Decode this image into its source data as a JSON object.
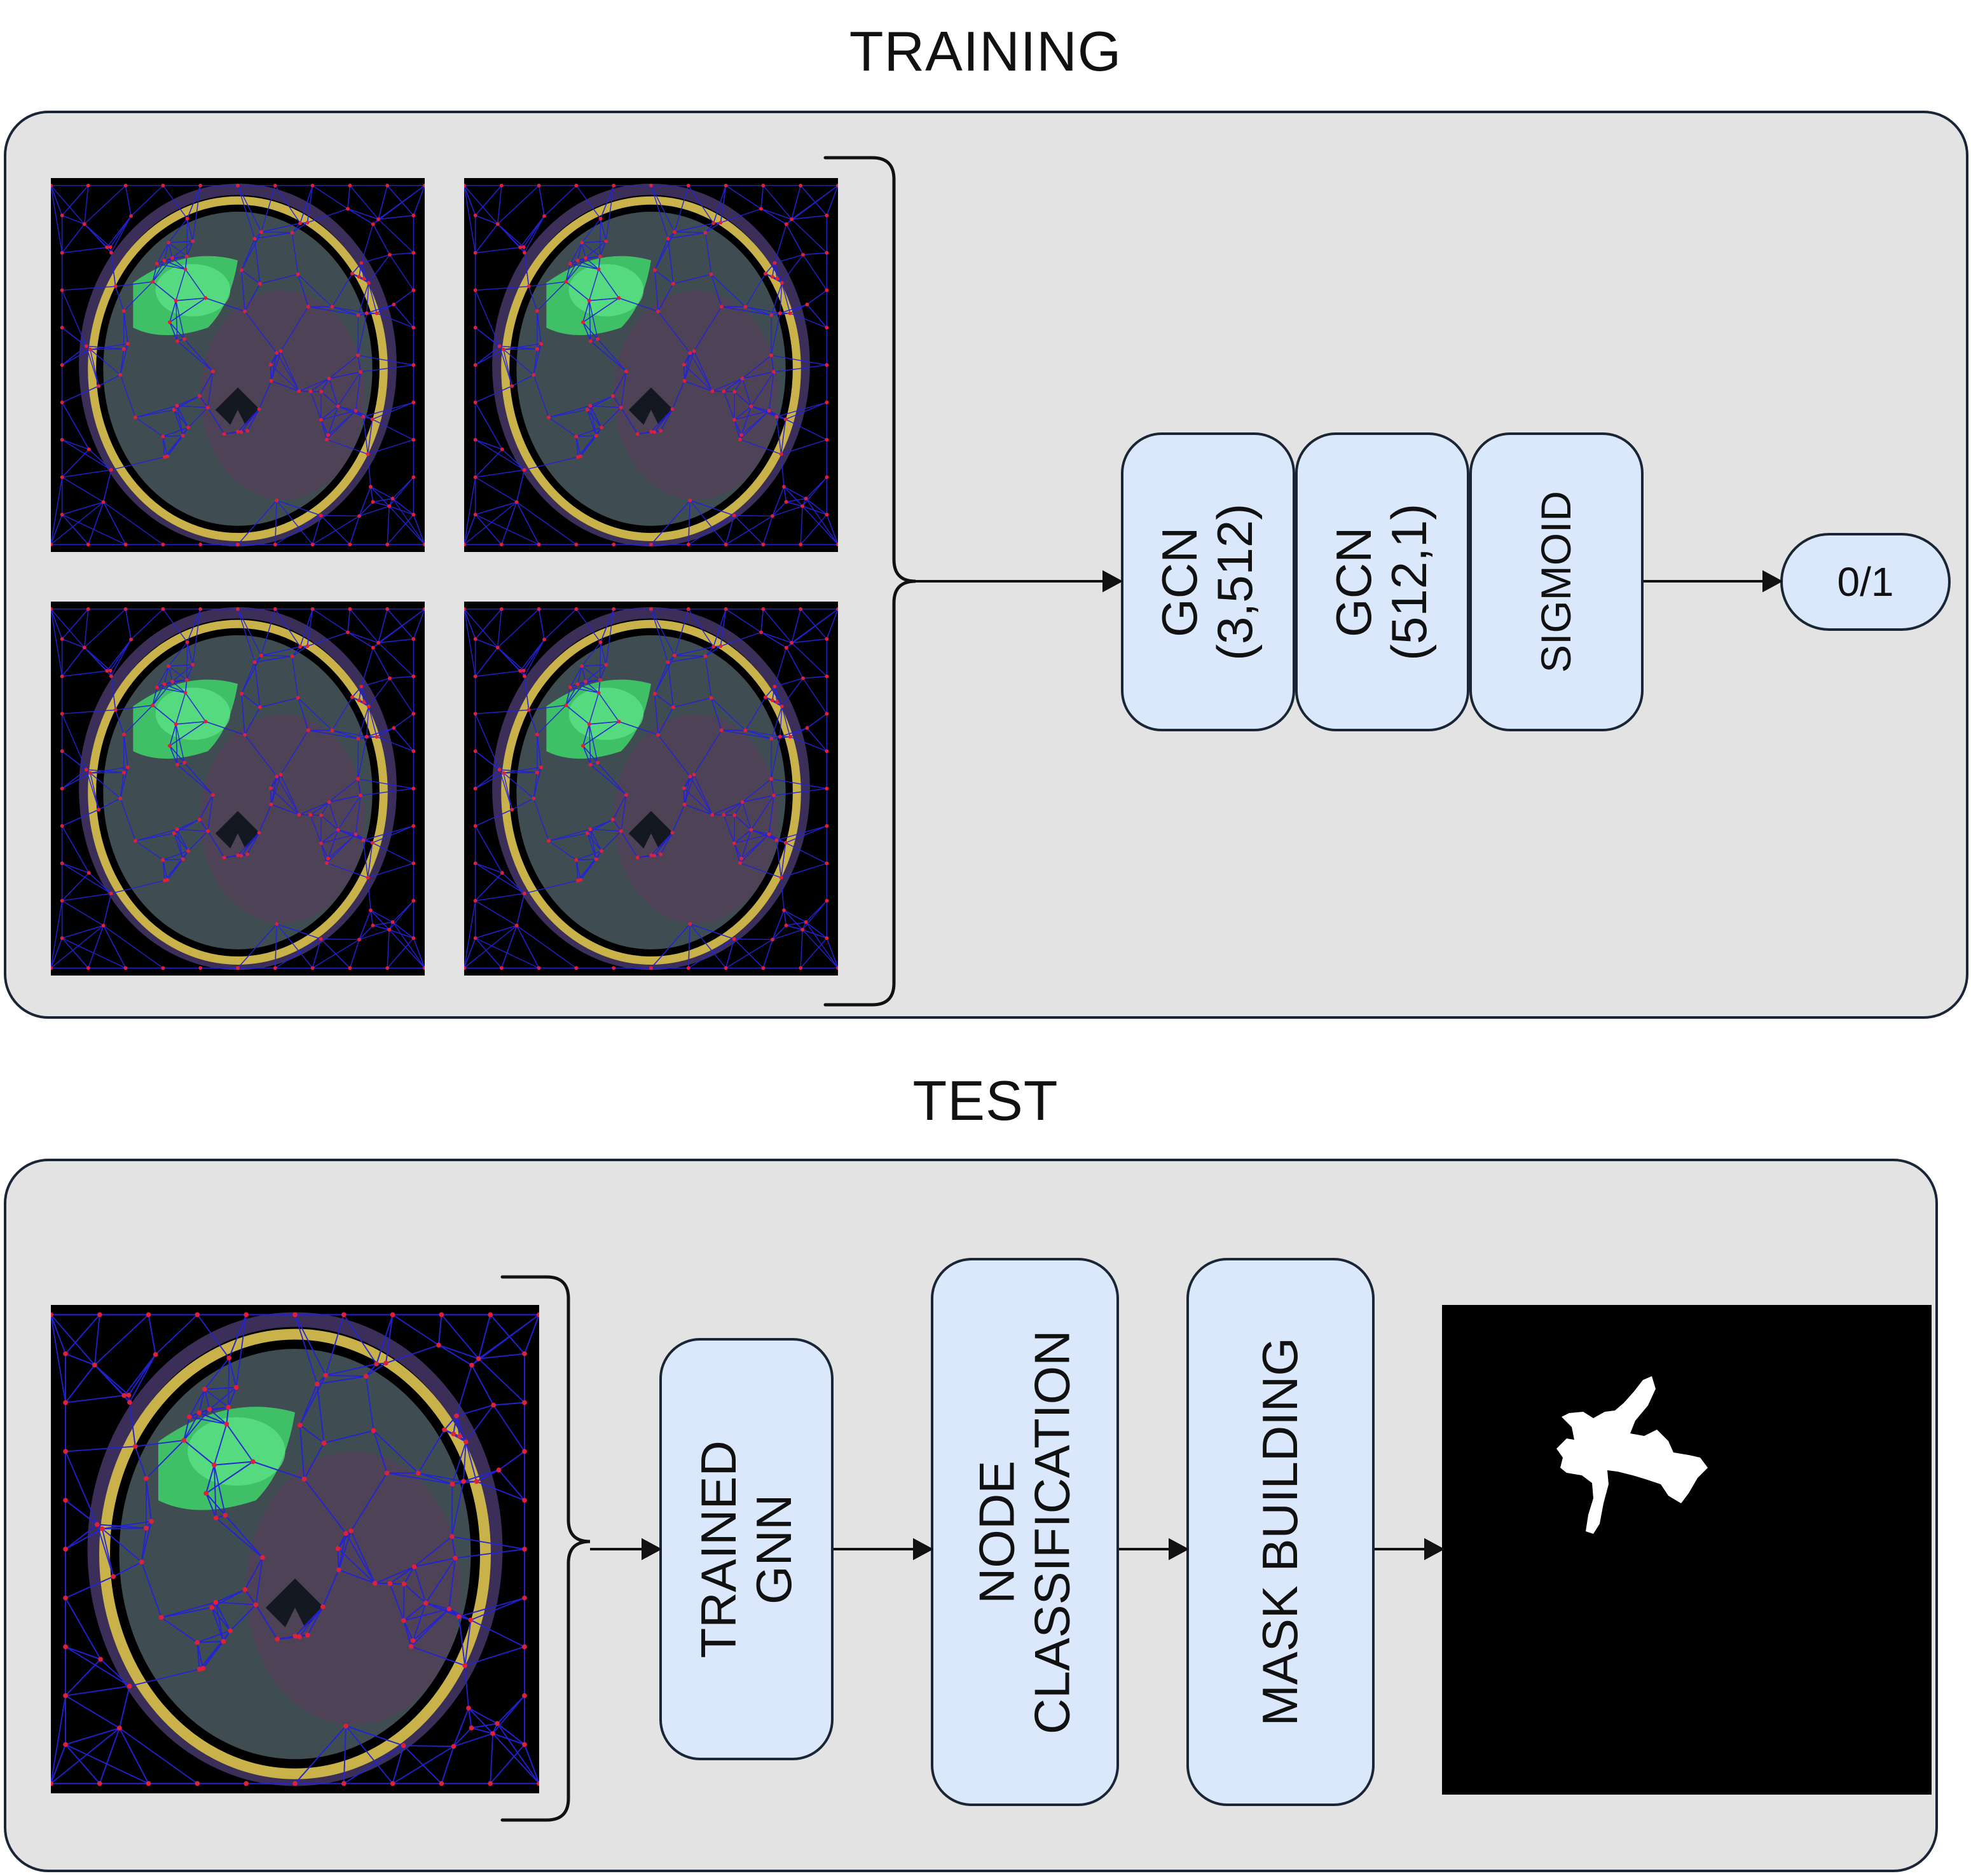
{
  "training": {
    "title": "TRAINING",
    "layers": [
      {
        "line1": "GCN",
        "line2": "(3,512)"
      },
      {
        "line1": "GCN",
        "line2": "(512,1)"
      },
      {
        "line1": "SIGMOID",
        "line2": ""
      }
    ],
    "output": "0/1"
  },
  "test": {
    "title": "TEST",
    "steps": [
      {
        "line1": "TRAINED",
        "line2": "GNN"
      },
      {
        "line1": "NODE",
        "line2": "CLASSIFICATION"
      },
      {
        "line1": "MASK BUILDING",
        "line2": ""
      }
    ]
  },
  "colors": {
    "panel_bg": "#e3e3e3",
    "block_fill": "#dbe7fb",
    "border": "#1a2535",
    "graph_edges": "#2323d6",
    "graph_nodes": "#e0203a",
    "tumor_green": "#3fd46a"
  },
  "icons": {
    "brain_graph": "mri-scan-with-graph-overlay",
    "mask": "segmentation-mask",
    "brace": "curly-brace",
    "arrow": "arrow-right"
  }
}
